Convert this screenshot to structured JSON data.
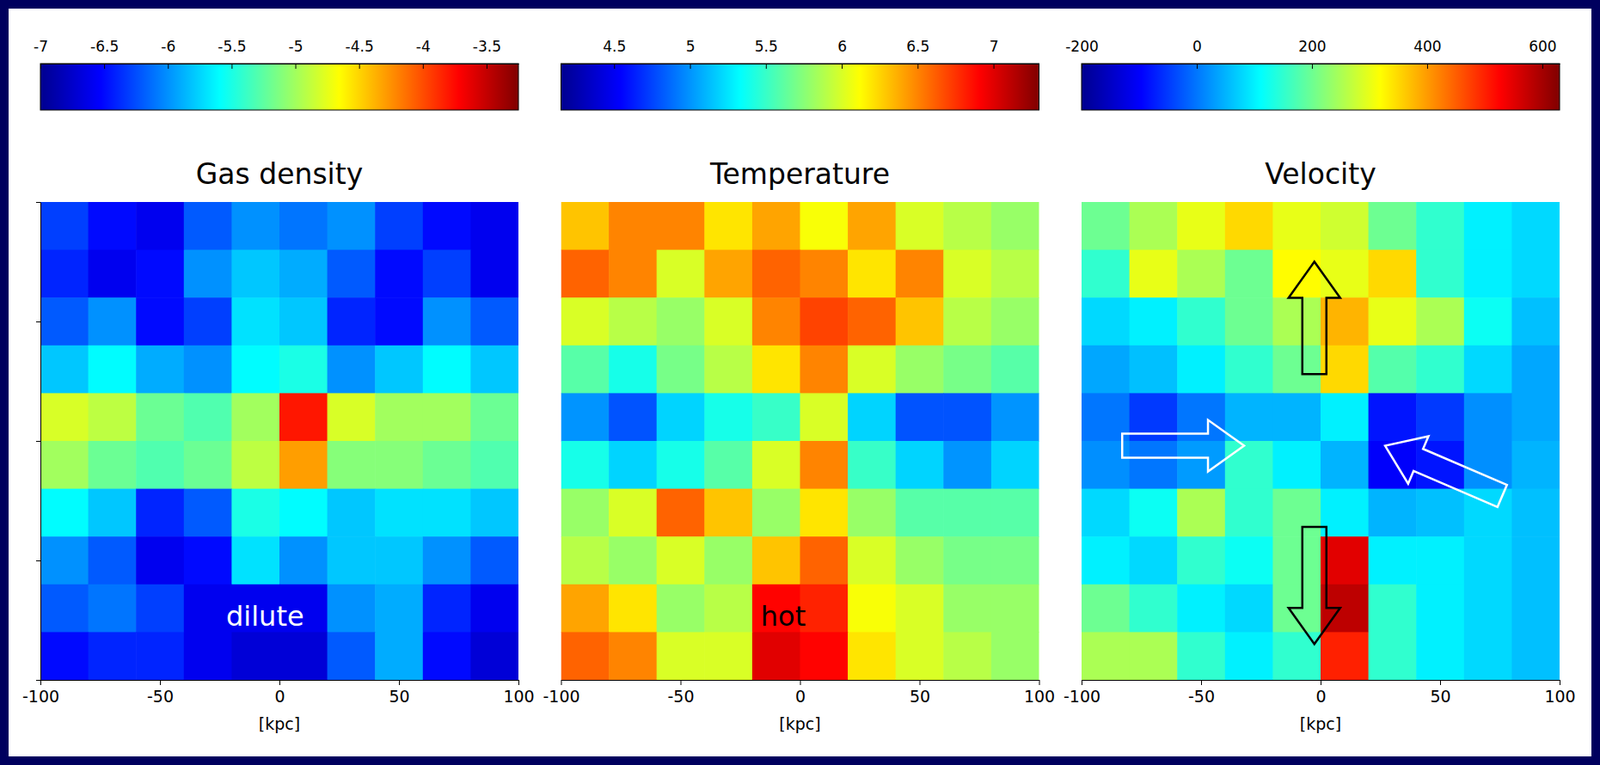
{
  "chart_data": [
    {
      "type": "heatmap",
      "title": "Gas density",
      "xlabel": "[kpc]",
      "xlim": [
        -100,
        100
      ],
      "xticks": [
        -100,
        -50,
        0,
        50,
        100
      ],
      "ylim": [
        -100,
        100
      ],
      "yticks": [
        -100,
        -50,
        0,
        50,
        100
      ],
      "tick_labels": "x",
      "colorbar": {
        "range": [
          -7,
          -3.25
        ],
        "ticks": [
          -7,
          -6.5,
          -6,
          -5.5,
          -5,
          -4.5,
          -4,
          -3.5
        ]
      },
      "annotations": [
        {
          "text": "dilute",
          "x": -6,
          "y": -74
        }
      ],
      "cells": [
        [
          -6.3,
          -6.5,
          -6.6,
          -6.2,
          -6.0,
          -6.1,
          -6.0,
          -6.3,
          -6.5,
          -6.6
        ],
        [
          -6.4,
          -6.6,
          -6.5,
          -6.0,
          -5.8,
          -5.9,
          -6.2,
          -6.5,
          -6.3,
          -6.6
        ],
        [
          -6.2,
          -6.0,
          -6.5,
          -6.3,
          -5.7,
          -5.8,
          -6.4,
          -6.5,
          -6.0,
          -6.2
        ],
        [
          -5.8,
          -5.6,
          -5.9,
          -6.0,
          -5.6,
          -5.5,
          -6.0,
          -5.8,
          -5.6,
          -5.8
        ],
        [
          -4.8,
          -4.9,
          -5.2,
          -5.3,
          -5.0,
          -3.8,
          -4.8,
          -5.0,
          -5.0,
          -5.2
        ],
        [
          -5.0,
          -5.2,
          -5.3,
          -5.2,
          -4.9,
          -4.3,
          -5.1,
          -5.1,
          -5.2,
          -5.3
        ],
        [
          -5.6,
          -5.8,
          -6.4,
          -6.2,
          -5.5,
          -5.6,
          -5.8,
          -5.7,
          -5.7,
          -5.8
        ],
        [
          -6.0,
          -6.2,
          -6.6,
          -6.5,
          -5.7,
          -6.0,
          -5.8,
          -5.8,
          -6.0,
          -6.2
        ],
        [
          -6.2,
          -6.1,
          -6.3,
          -6.6,
          -6.6,
          -6.6,
          -6.0,
          -5.9,
          -6.4,
          -6.6
        ],
        [
          -6.5,
          -6.4,
          -6.4,
          -6.6,
          -6.7,
          -6.7,
          -6.2,
          -5.9,
          -6.5,
          -6.7
        ]
      ]
    },
    {
      "type": "heatmap",
      "title": "Temperature",
      "xlabel": "[kpc]",
      "xlim": [
        -100,
        100
      ],
      "xticks": [
        -100,
        -50,
        0,
        50,
        100
      ],
      "ylim": [
        -100,
        100
      ],
      "tick_labels": "x",
      "colorbar": {
        "range": [
          4.15,
          7.3
        ],
        "ticks": [
          4.5,
          5,
          5.5,
          6,
          6.5,
          7
        ]
      },
      "annotations": [
        {
          "text": "hot",
          "x": -7,
          "y": -74
        }
      ],
      "cells": [
        [
          6.3,
          6.5,
          6.5,
          6.2,
          6.4,
          6.1,
          6.4,
          6.0,
          5.9,
          5.8
        ],
        [
          6.6,
          6.5,
          6.0,
          6.4,
          6.6,
          6.5,
          6.2,
          6.5,
          6.0,
          5.9
        ],
        [
          6.0,
          5.9,
          5.8,
          6.0,
          6.5,
          6.7,
          6.6,
          6.3,
          5.9,
          5.8
        ],
        [
          5.6,
          5.4,
          5.7,
          5.9,
          6.2,
          6.5,
          6.0,
          5.8,
          5.7,
          5.6
        ],
        [
          5.0,
          4.8,
          5.2,
          5.4,
          5.5,
          6.0,
          5.2,
          4.8,
          4.8,
          5.0
        ],
        [
          5.4,
          5.2,
          5.4,
          5.6,
          6.0,
          6.5,
          5.5,
          5.2,
          5.0,
          5.2
        ],
        [
          5.8,
          6.0,
          6.6,
          6.3,
          5.8,
          6.2,
          5.8,
          5.6,
          5.6,
          5.6
        ],
        [
          5.9,
          5.8,
          6.0,
          5.8,
          6.3,
          6.6,
          6.0,
          5.8,
          5.7,
          5.7
        ],
        [
          6.4,
          6.2,
          5.8,
          5.9,
          6.9,
          6.8,
          6.1,
          6.0,
          5.8,
          5.8
        ],
        [
          6.6,
          6.5,
          6.0,
          6.0,
          7.0,
          6.9,
          6.2,
          6.0,
          5.9,
          5.8
        ]
      ]
    },
    {
      "type": "heatmap",
      "title": "Velocity",
      "xlabel": "[kpc]",
      "xlim": [
        -100,
        100
      ],
      "xticks": [
        -100,
        -50,
        0,
        50,
        100
      ],
      "ylim": [
        -100,
        100
      ],
      "tick_labels": "x",
      "colorbar": {
        "range": [
          -200,
          630
        ],
        "ticks": [
          -200,
          0,
          200,
          400,
          600
        ]
      },
      "cells": [
        [
          200,
          250,
          300,
          350,
          300,
          280,
          200,
          150,
          100,
          80
        ],
        [
          150,
          300,
          250,
          200,
          320,
          300,
          350,
          150,
          100,
          80
        ],
        [
          80,
          100,
          150,
          200,
          250,
          380,
          300,
          250,
          120,
          60
        ],
        [
          40,
          60,
          100,
          150,
          200,
          350,
          180,
          150,
          80,
          40
        ],
        [
          0,
          -50,
          0,
          50,
          50,
          100,
          -80,
          -50,
          20,
          40
        ],
        [
          20,
          0,
          30,
          150,
          100,
          50,
          -100,
          -80,
          20,
          50
        ],
        [
          80,
          120,
          250,
          150,
          200,
          100,
          50,
          60,
          80,
          60
        ],
        [
          100,
          80,
          150,
          120,
          200,
          550,
          100,
          100,
          80,
          60
        ],
        [
          200,
          150,
          100,
          80,
          200,
          580,
          150,
          100,
          80,
          60
        ],
        [
          250,
          250,
          150,
          100,
          150,
          500,
          150,
          100,
          80,
          60
        ]
      ]
    }
  ]
}
